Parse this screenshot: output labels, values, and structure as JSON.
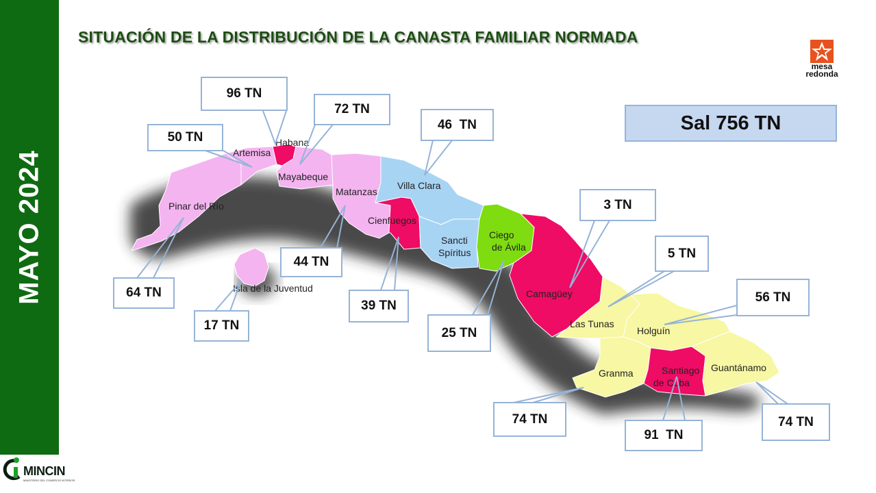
{
  "side_label": "MAYO 2024",
  "title": "SITUACIÓN DE LA DISTRIBUCIÓN DE LA CANASTA FAMILIAR NORMADA",
  "logo": {
    "line1": "mesa",
    "line2": "redonda",
    "icon": "star-logo-icon",
    "color": "#e8521e"
  },
  "summary": "Sal 756 TN",
  "footer_logo": {
    "name": "MINCIN",
    "subtitle": "MINISTERIO DEL COMERCIO INTERIOR"
  },
  "colors": {
    "sidebar": "#0f6b12",
    "pink": "#f4b4f0",
    "magenta": "#ee0c64",
    "blue": "#a8d4f4",
    "green": "#7edc10",
    "yellow": "#f7f7a4",
    "callout_border": "#95b3d7",
    "summary_fill": "#c6d8f0"
  },
  "provinces": [
    {
      "name": "Pinar del Río",
      "value": "64 TN"
    },
    {
      "name": "Artemisa",
      "value": "50 TN"
    },
    {
      "name": "Habana",
      "value": "96 TN"
    },
    {
      "name": "Mayabeque",
      "value": "72 TN"
    },
    {
      "name": "Matanzas",
      "value": "44 TN"
    },
    {
      "name": "Isla de la Juventud",
      "value": "17 TN"
    },
    {
      "name": "Cienfuegos",
      "value": "39 TN"
    },
    {
      "name": "Villa Clara",
      "value": "46  TN"
    },
    {
      "name": "Sancti Spíritus",
      "value": ""
    },
    {
      "name": "Ciego de Ávila",
      "value": "25 TN"
    },
    {
      "name": "Camagüey",
      "value": "3 TN"
    },
    {
      "name": "Las Tunas",
      "value": "5 TN"
    },
    {
      "name": "Holguín",
      "value": "56 TN"
    },
    {
      "name": "Granma",
      "value": "74 TN"
    },
    {
      "name": "Santiago de Cuba",
      "value": "91  TN"
    },
    {
      "name": "Guantánamo",
      "value": "74 TN"
    }
  ]
}
